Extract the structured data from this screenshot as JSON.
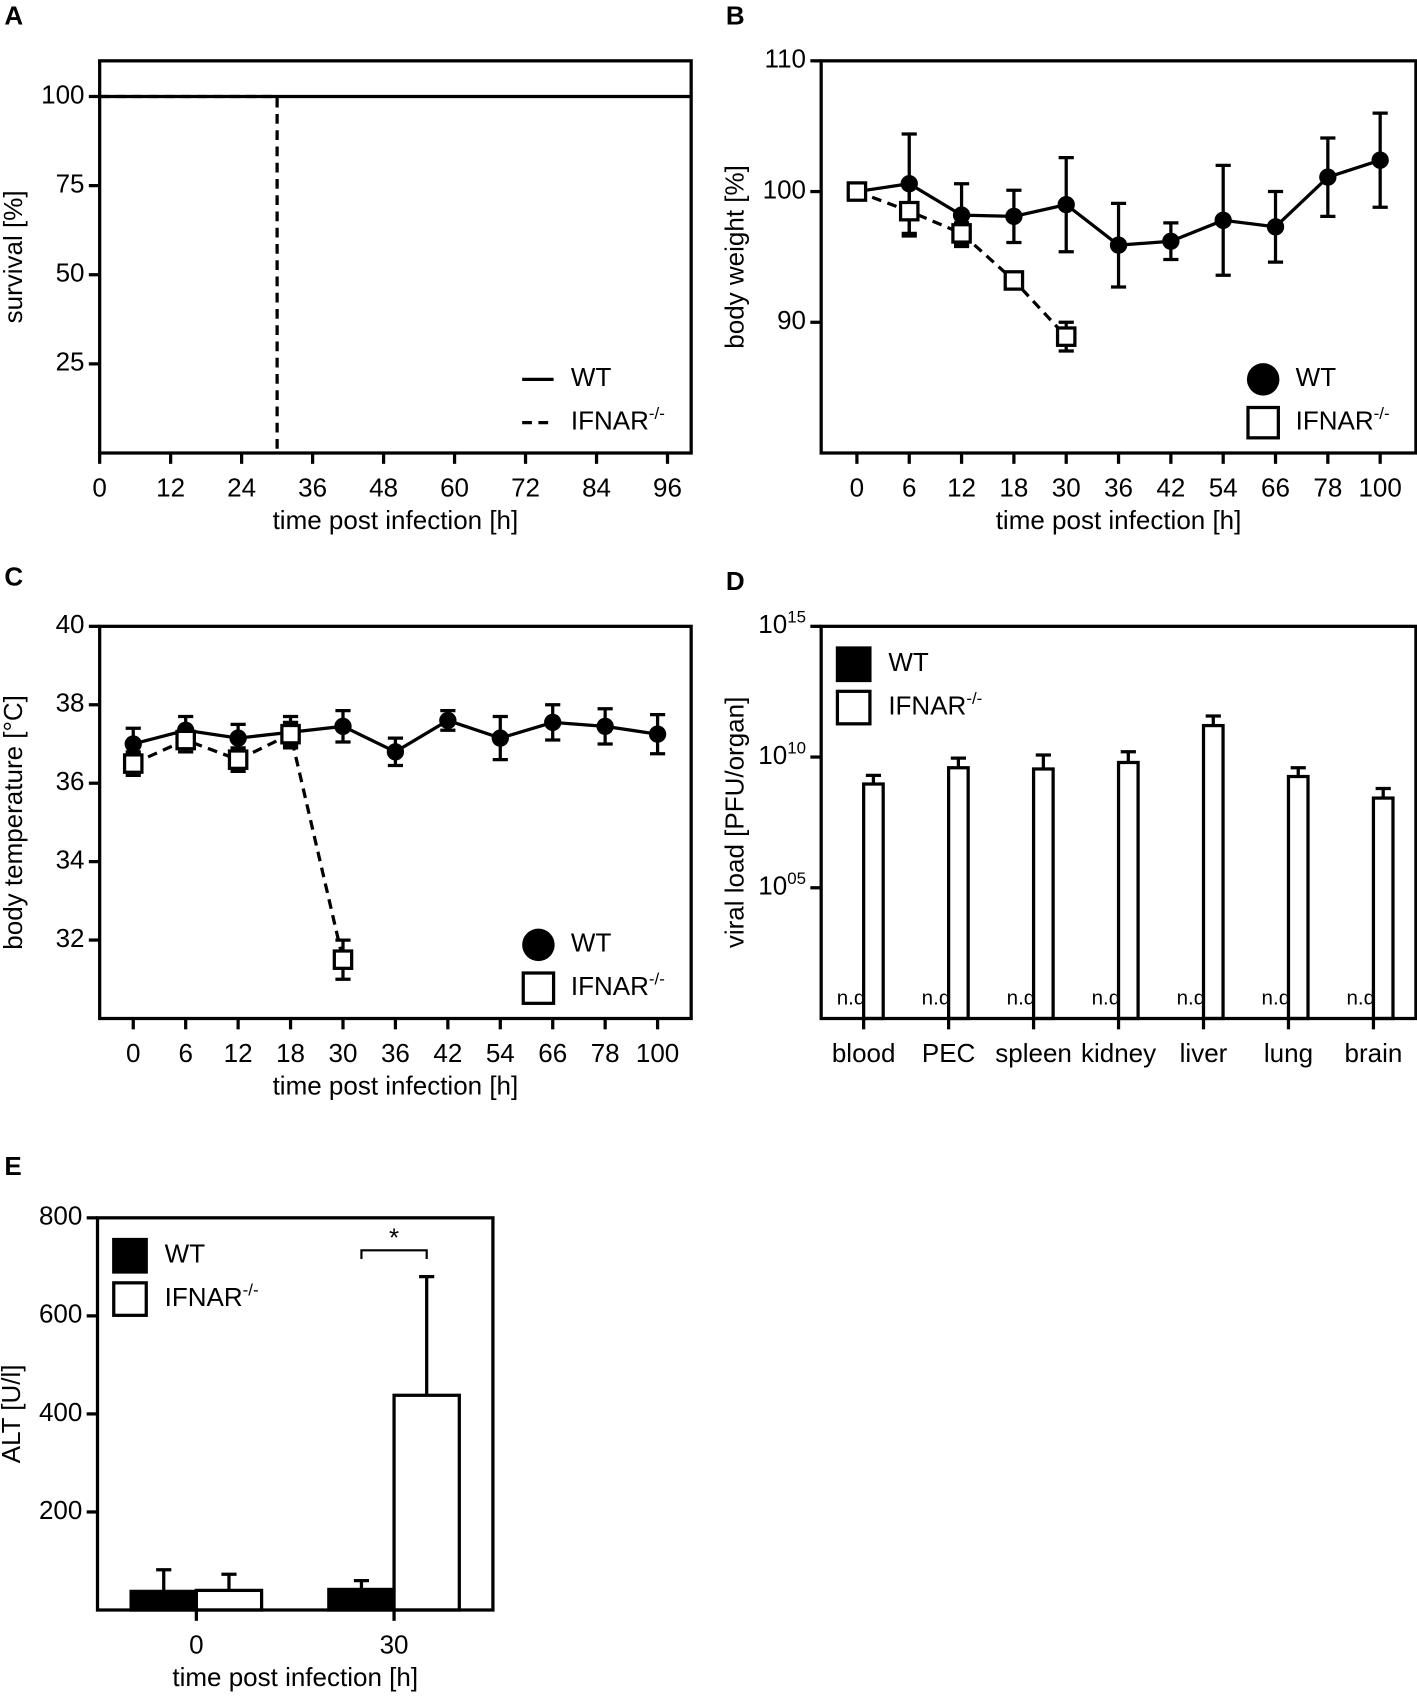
{
  "chart_data": [
    {
      "type": "line",
      "panel": "A",
      "xlabel": "time post infection [h]",
      "ylabel": "survival [%]",
      "xlim": [
        0,
        100
      ],
      "xticks": [
        0,
        12,
        24,
        36,
        48,
        60,
        72,
        84,
        96
      ],
      "ylim": [
        0,
        110
      ],
      "yticks": [
        25,
        50,
        75,
        100
      ],
      "legend": "lower right",
      "series": [
        {
          "name": "WT",
          "color": "#000000",
          "line_style": "solid",
          "x": [
            0,
            100
          ],
          "values": [
            100,
            100
          ]
        },
        {
          "name": "IFNAR^-/-",
          "color": "#000000",
          "line_style": "dashed",
          "x": [
            0,
            30,
            30
          ],
          "values": [
            100,
            100,
            0
          ]
        }
      ]
    },
    {
      "type": "line",
      "panel": "B",
      "xlabel": "time post infection [h]",
      "ylabel": "body weight [%]",
      "categories": [
        "0",
        "6",
        "12",
        "18",
        "30",
        "36",
        "42",
        "54",
        "66",
        "78",
        "100"
      ],
      "ylim": [
        80,
        110
      ],
      "yticks": [
        90,
        100,
        110
      ],
      "legend": "lower right",
      "series": [
        {
          "name": "WT",
          "color": "#000000",
          "marker": "circle",
          "line_style": "solid",
          "values": [
            100,
            100.6,
            98.2,
            98.1,
            99.0,
            95.9,
            96.2,
            97.8,
            97.3,
            101.1,
            102.4
          ],
          "errors": [
            0,
            3.8,
            2.4,
            2.0,
            3.6,
            3.2,
            1.4,
            4.2,
            2.7,
            3.0,
            3.6
          ]
        },
        {
          "name": "IFNAR^-/-",
          "color": "#ffffff",
          "marker": "square",
          "line_style": "dashed",
          "values": [
            100,
            98.5,
            96.8,
            93.2,
            88.9,
            null,
            null,
            null,
            null,
            null,
            null
          ],
          "errors": [
            0,
            1.9,
            0.8,
            0.3,
            1.1,
            null,
            null,
            null,
            null,
            null,
            null
          ]
        }
      ]
    },
    {
      "type": "line",
      "panel": "C",
      "xlabel": "time post infection [h]",
      "ylabel": "body temperature [°C]",
      "categories": [
        "0",
        "6",
        "12",
        "18",
        "30",
        "36",
        "42",
        "54",
        "66",
        "78",
        "100"
      ],
      "ylim": [
        30,
        40
      ],
      "yticks": [
        32,
        34,
        36,
        38,
        40
      ],
      "legend": "lower right",
      "series": [
        {
          "name": "WT",
          "color": "#000000",
          "marker": "circle",
          "line_style": "solid",
          "values": [
            37.0,
            37.35,
            37.15,
            37.3,
            37.45,
            36.8,
            37.6,
            37.15,
            37.55,
            37.45,
            37.25
          ],
          "errors": [
            0.4,
            0.35,
            0.35,
            0.4,
            0.4,
            0.35,
            0.25,
            0.55,
            0.45,
            0.45,
            0.5
          ]
        },
        {
          "name": "IFNAR^-/-",
          "color": "#ffffff",
          "marker": "square",
          "line_style": "dashed",
          "values": [
            36.5,
            37.1,
            36.6,
            37.25,
            31.5,
            null,
            null,
            null,
            null,
            null,
            null
          ],
          "errors": [
            0.3,
            0.3,
            0.3,
            0.3,
            0.5,
            null,
            null,
            null,
            null,
            null,
            null
          ]
        }
      ]
    },
    {
      "type": "bar",
      "panel": "D",
      "ylabel": "viral load [PFU/organ]",
      "log_y": true,
      "categories": [
        "blood",
        "PEC",
        "spleen",
        "kidney",
        "liver",
        "lung",
        "brain"
      ],
      "ylim": [
        1,
        1000000000000000.0
      ],
      "yticks": [
        {
          "value": 100000,
          "label": "10^05"
        },
        {
          "value": 10000000000,
          "label": "10^10"
        },
        {
          "value": 1000000000000000.0,
          "label": "10^15"
        }
      ],
      "legend": "upper left",
      "series": [
        {
          "name": "WT",
          "color": "#000000",
          "values": [
            null,
            null,
            null,
            null,
            null,
            null,
            null
          ],
          "value_labels": [
            "n.d.",
            "n.d.",
            "n.d.",
            "n.d.",
            "n.d.",
            "n.d.",
            "n.d."
          ]
        },
        {
          "name": "IFNAR^-/-",
          "color": "#ffffff",
          "values": [
            930000000,
            3900000000,
            3500000000,
            6200000000,
            160000000000,
            1800000000,
            270000000
          ],
          "errors": [
            1070000000,
            5200000000,
            8500000000,
            9800000000,
            210000000000,
            2100000000,
            360000000
          ]
        }
      ]
    },
    {
      "type": "bar",
      "panel": "E",
      "xlabel": "time post infection [h]",
      "ylabel": "ALT [U/l]",
      "categories": [
        "0",
        "30"
      ],
      "ylim": [
        0,
        800
      ],
      "yticks": [
        200,
        400,
        600,
        800
      ],
      "legend": "upper left",
      "annotation": "*",
      "series": [
        {
          "name": "WT",
          "color": "#000000",
          "values": [
            38,
            42
          ],
          "errors": [
            44,
            18
          ]
        },
        {
          "name": "IFNAR^-/-",
          "color": "#ffffff",
          "values": [
            40,
            438
          ],
          "errors": [
            33,
            242
          ]
        }
      ]
    }
  ]
}
